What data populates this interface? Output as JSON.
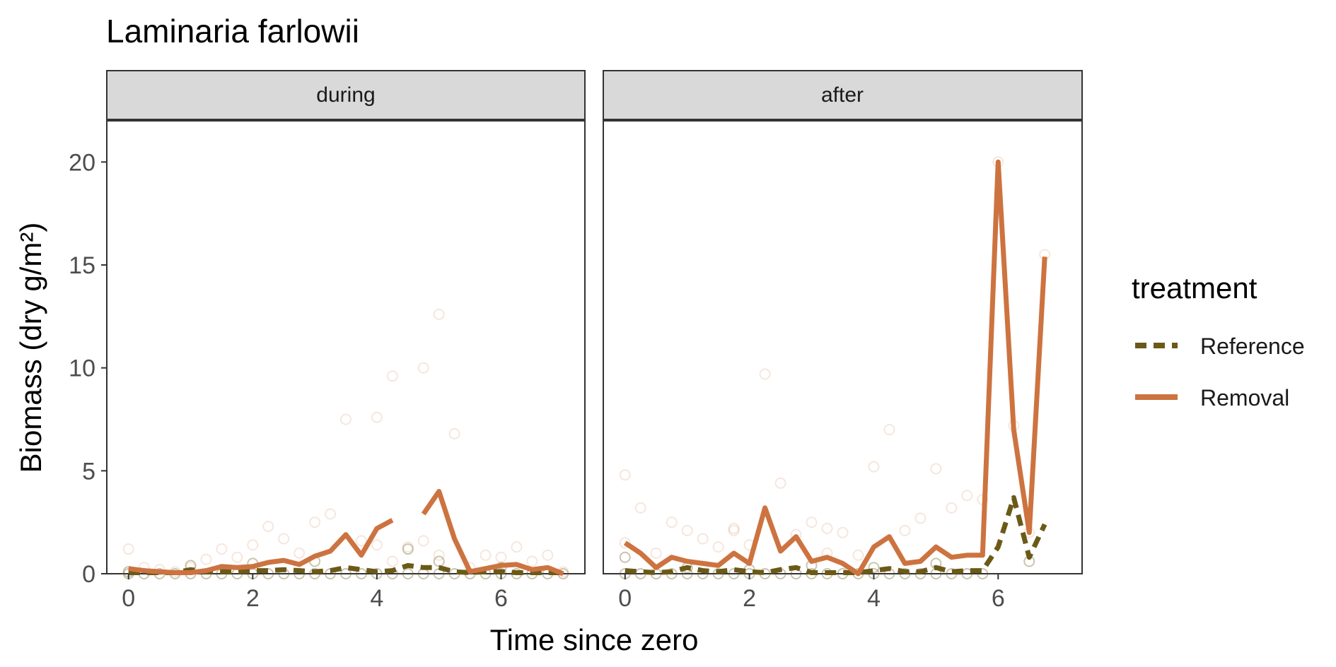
{
  "chart_data": {
    "type": "line",
    "title": "Laminaria farlowii",
    "xlabel": "Time since zero",
    "ylabel": "Biomass (dry g/m²)",
    "ylim": [
      0,
      22
    ],
    "yticks": [
      0,
      5,
      10,
      15,
      20
    ],
    "xticks": [
      0,
      2,
      4,
      6
    ],
    "grid": false,
    "legend": {
      "title": "treatment",
      "position": "right",
      "items": [
        {
          "label": "Reference",
          "color": "#6b5a17",
          "dash": "dashed"
        },
        {
          "label": "Removal",
          "color": "#cd7340",
          "dash": "solid"
        }
      ]
    },
    "colors": {
      "reference": "#6b5a17",
      "removal": "#cd7340",
      "strip_fill": "#d9d9d9",
      "panel_border": "#333333"
    },
    "panels": [
      {
        "strip": "during",
        "xlim": [
          -0.35,
          7.35
        ],
        "series": [
          {
            "name": "Reference",
            "x": [
              0,
              0.25,
              0.5,
              0.75,
              1,
              1.25,
              1.5,
              1.75,
              2,
              2.25,
              2.5,
              2.75,
              3,
              3.25,
              3.5,
              3.75,
              4,
              4.25,
              4.5,
              4.75,
              5,
              5.25,
              5.5,
              5.75,
              6,
              6.25,
              6.5,
              6.75,
              7
            ],
            "y": [
              0.05,
              0.05,
              0.05,
              0.05,
              0.2,
              0.1,
              0.1,
              0.1,
              0.15,
              0.15,
              0.2,
              0.15,
              0.1,
              0.15,
              0.3,
              0.2,
              0.1,
              0.15,
              0.4,
              0.3,
              0.3,
              0.1,
              0.05,
              0.1,
              0.1,
              0.05,
              0.05,
              0.05,
              0.05
            ]
          },
          {
            "name": "Removal",
            "x": [
              0,
              0.25,
              0.5,
              0.75,
              1,
              1.25,
              1.5,
              1.75,
              2,
              2.25,
              2.5,
              2.75,
              3,
              3.25,
              3.5,
              3.75,
              4,
              4.25,
              4.5,
              4.75,
              5,
              5.25,
              5.5,
              5.75,
              6,
              6.25,
              6.5,
              6.75,
              7
            ],
            "y": [
              0.25,
              0.15,
              0.1,
              0.05,
              0.05,
              0.15,
              0.35,
              0.3,
              0.35,
              0.55,
              0.65,
              0.45,
              0.85,
              1.1,
              1.9,
              0.9,
              2.2,
              2.6,
              null,
              2.9,
              4.0,
              1.7,
              0.1,
              0.25,
              0.4,
              0.45,
              0.2,
              0.3,
              0.0
            ]
          }
        ],
        "points": {
          "Reference": [
            [
              0,
              0
            ],
            [
              0.25,
              0
            ],
            [
              0.5,
              0
            ],
            [
              0.75,
              0
            ],
            [
              1,
              0
            ],
            [
              1.25,
              0
            ],
            [
              1.5,
              0
            ],
            [
              1.75,
              0
            ],
            [
              2,
              0
            ],
            [
              2.25,
              0
            ],
            [
              2.5,
              0
            ],
            [
              2.75,
              0
            ],
            [
              3,
              0
            ],
            [
              3.25,
              0
            ],
            [
              3.5,
              0
            ],
            [
              3.75,
              0
            ],
            [
              4,
              0
            ],
            [
              4.25,
              0
            ],
            [
              4.5,
              0
            ],
            [
              4.75,
              0
            ],
            [
              5,
              0
            ],
            [
              5.25,
              0
            ],
            [
              5.5,
              0
            ],
            [
              5.75,
              0
            ],
            [
              6,
              0
            ],
            [
              6.25,
              0
            ],
            [
              6.5,
              0
            ],
            [
              6.75,
              0
            ],
            [
              7,
              0
            ],
            [
              0,
              0.1
            ],
            [
              1,
              0.4
            ],
            [
              2,
              0.5
            ],
            [
              3,
              0.6
            ],
            [
              4.5,
              1.2
            ],
            [
              5,
              0.6
            ],
            [
              6,
              0.3
            ]
          ],
          "Removal": [
            [
              0,
              1.2
            ],
            [
              0.25,
              0.3
            ],
            [
              0.5,
              0.2
            ],
            [
              0.75,
              0.1
            ],
            [
              1,
              0.3
            ],
            [
              1.25,
              0.7
            ],
            [
              1.5,
              1.2
            ],
            [
              1.75,
              0.8
            ],
            [
              2,
              1.4
            ],
            [
              2.25,
              2.3
            ],
            [
              2.5,
              1.7
            ],
            [
              2.75,
              1.0
            ],
            [
              3,
              2.5
            ],
            [
              3.25,
              2.9
            ],
            [
              3.5,
              7.5
            ],
            [
              3.75,
              1.6
            ],
            [
              4,
              7.6
            ],
            [
              4.25,
              9.6
            ],
            [
              4.5,
              1.3
            ],
            [
              4.75,
              10.0
            ],
            [
              5,
              12.6
            ],
            [
              5.25,
              6.8
            ],
            [
              5.5,
              0.3
            ],
            [
              5.75,
              0.9
            ],
            [
              6,
              0.8
            ],
            [
              6.25,
              1.3
            ],
            [
              6.5,
              0.6
            ],
            [
              6.75,
              0.9
            ],
            [
              7,
              0.1
            ],
            [
              4,
              1.4
            ],
            [
              4.25,
              0.6
            ],
            [
              4.75,
              1.6
            ],
            [
              5,
              0.9
            ]
          ]
        }
      },
      {
        "strip": "after",
        "xlim": [
          -0.35,
          7.35
        ],
        "series": [
          {
            "name": "Reference",
            "x": [
              0,
              0.25,
              0.5,
              0.75,
              1,
              1.25,
              1.5,
              1.75,
              2,
              2.25,
              2.5,
              2.75,
              3,
              3.25,
              3.5,
              3.75,
              4,
              4.25,
              4.5,
              4.75,
              5,
              5.25,
              5.5,
              5.75,
              6,
              6.25,
              6.5,
              6.75
            ],
            "y": [
              0.15,
              0.1,
              0.05,
              0.1,
              0.3,
              0.15,
              0.1,
              0.2,
              0.1,
              0.05,
              0.2,
              0.3,
              0.05,
              0.05,
              0.05,
              0.05,
              0.15,
              0.25,
              0.1,
              0.1,
              0.3,
              0.1,
              0.15,
              0.15,
              1.3,
              3.7,
              0.8,
              2.4
            ]
          },
          {
            "name": "Removal",
            "x": [
              0,
              0.25,
              0.5,
              0.75,
              1,
              1.25,
              1.5,
              1.75,
              2,
              2.25,
              2.5,
              2.75,
              3,
              3.25,
              3.5,
              3.75,
              4,
              4.25,
              4.5,
              4.75,
              5,
              5.25,
              5.5,
              5.75,
              6,
              6.25,
              6.5,
              6.75
            ],
            "y": [
              1.5,
              1.0,
              0.3,
              0.8,
              0.6,
              0.5,
              0.4,
              1.0,
              0.5,
              3.2,
              1.1,
              1.8,
              0.6,
              0.8,
              0.5,
              0.0,
              1.3,
              1.8,
              0.5,
              0.6,
              1.3,
              0.8,
              0.9,
              0.9,
              20.0,
              7.0,
              2.0,
              15.4
            ]
          }
        ],
        "points": {
          "Reference": [
            [
              0,
              0
            ],
            [
              0.25,
              0
            ],
            [
              0.5,
              0
            ],
            [
              0.75,
              0
            ],
            [
              1,
              0
            ],
            [
              1.25,
              0
            ],
            [
              1.5,
              0
            ],
            [
              1.75,
              0
            ],
            [
              2,
              0
            ],
            [
              2.25,
              0
            ],
            [
              2.5,
              0
            ],
            [
              2.75,
              0
            ],
            [
              3,
              0
            ],
            [
              3.25,
              0
            ],
            [
              3.5,
              0
            ],
            [
              3.75,
              0
            ],
            [
              4,
              0
            ],
            [
              4.25,
              0
            ],
            [
              4.5,
              0
            ],
            [
              4.75,
              0
            ],
            [
              5,
              0
            ],
            [
              5.25,
              0
            ],
            [
              5.5,
              0
            ],
            [
              5.75,
              0
            ],
            [
              0,
              0.8
            ],
            [
              1,
              0.3
            ],
            [
              2,
              0.2
            ],
            [
              3,
              0.4
            ],
            [
              4,
              0.3
            ],
            [
              5,
              0.5
            ],
            [
              6.5,
              0.6
            ]
          ],
          "Removal": [
            [
              0,
              4.8
            ],
            [
              0.25,
              3.2
            ],
            [
              0.5,
              1.0
            ],
            [
              0.75,
              2.5
            ],
            [
              1,
              2.1
            ],
            [
              1.25,
              1.7
            ],
            [
              1.5,
              1.3
            ],
            [
              1.75,
              2.1
            ],
            [
              2,
              1.4
            ],
            [
              2.25,
              9.7
            ],
            [
              2.5,
              4.4
            ],
            [
              2.75,
              1.9
            ],
            [
              3,
              2.5
            ],
            [
              3.25,
              2.2
            ],
            [
              3.5,
              2.0
            ],
            [
              3.75,
              0.9
            ],
            [
              4,
              5.2
            ],
            [
              4.25,
              7.0
            ],
            [
              4.5,
              2.1
            ],
            [
              4.75,
              2.7
            ],
            [
              5,
              5.1
            ],
            [
              5.25,
              3.2
            ],
            [
              5.5,
              3.8
            ],
            [
              5.75,
              3.6
            ],
            [
              6,
              20.0
            ],
            [
              6.25,
              7.2
            ],
            [
              6.5,
              2.0
            ],
            [
              6.75,
              15.5
            ],
            [
              1.75,
              2.2
            ],
            [
              3.25,
              1.0
            ],
            [
              0,
              1.5
            ]
          ]
        }
      }
    ]
  }
}
